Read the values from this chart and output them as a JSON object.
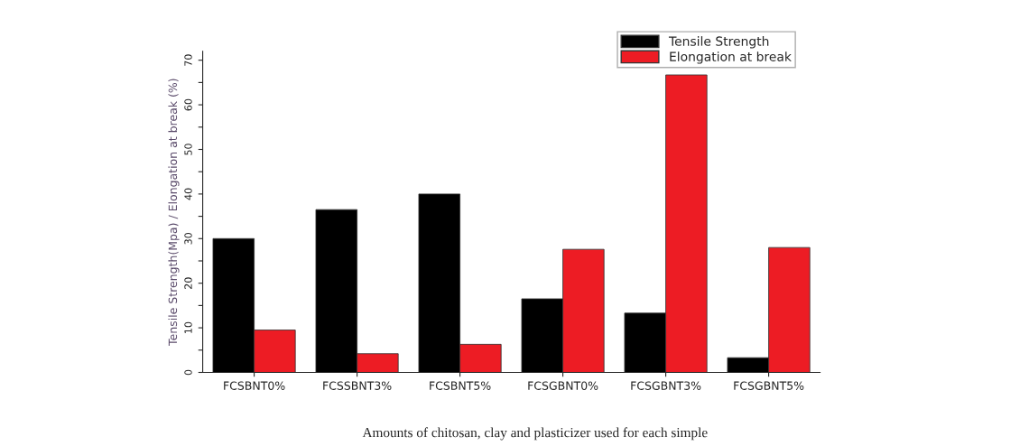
{
  "chart_data": {
    "type": "bar",
    "categories": [
      "FCSBNT0%",
      "FCSSBNT3%",
      "FCSBNT5%",
      "FCSGBNT0%",
      "FCSGBNT3%",
      "FCSGBNT5%"
    ],
    "series": [
      {
        "name": "Tensile Strength",
        "color": "#000000",
        "values": [
          30,
          36.5,
          40,
          16.5,
          13.3,
          3.3
        ]
      },
      {
        "name": "Elongation at break",
        "color": "#ed1c24",
        "values": [
          9.5,
          4.2,
          6.3,
          27.6,
          66.7,
          28
        ]
      }
    ],
    "xlabel": "Amounts of chitosan, clay and plasticizer used for each simple",
    "ylabel": "Tensile Strength(Mpa) / Elongation at break (%)",
    "ylim": [
      0,
      72
    ],
    "yticks": [
      0,
      {
        "value": 5,
        "label": null
      },
      10,
      {
        "value": 15,
        "label": null
      },
      20,
      {
        "value": 25,
        "label": null
      },
      30,
      {
        "value": 35,
        "label": null
      },
      40,
      {
        "value": 45,
        "label": null
      },
      50,
      {
        "value": 55,
        "label": null
      },
      60,
      {
        "value": 65,
        "label": null
      },
      70
    ],
    "legend": "top right",
    "grid": false
  }
}
